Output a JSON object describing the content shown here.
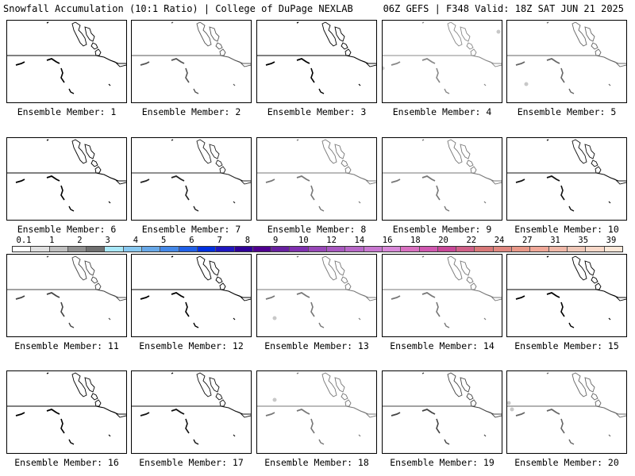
{
  "header": {
    "left_title": "Snowfall Accumulation (10:1 Ratio) | College of DuPage NEXLAB",
    "right_title": "06Z GEFS | F348 Valid: 18Z SAT JUN 21 2025"
  },
  "colorbar": {
    "labels": [
      "0.1",
      "1",
      "2",
      "3",
      "4",
      "5",
      "6",
      "7",
      "8",
      "9",
      "10",
      "12",
      "14",
      "16",
      "18",
      "20",
      "22",
      "24",
      "27",
      "31",
      "35",
      "39"
    ],
    "colors": [
      "#ffffff",
      "#e0e0e0",
      "#c0c0c0",
      "#909090",
      "#707070",
      "#a8e8f8",
      "#88c8f0",
      "#68a8e8",
      "#4488e8",
      "#2060e8",
      "#0030e0",
      "#2018c0",
      "#300098",
      "#500090",
      "#6820a0",
      "#8030b0",
      "#9848b8",
      "#a858c0",
      "#b868c8",
      "#c878d0",
      "#d888d8",
      "#d870c0",
      "#d058b0",
      "#c84898",
      "#d06088",
      "#d87878",
      "#e08880",
      "#e89888",
      "#f0a898",
      "#f0b8a8",
      "#f0c8b8",
      "#f8d8c8",
      "#fce8d8"
    ]
  },
  "panels": [
    {
      "label": "Ensemble Member: 1",
      "stroke": "#000000",
      "snow": false
    },
    {
      "label": "Ensemble Member: 2",
      "stroke": "#555555",
      "snow": false
    },
    {
      "label": "Ensemble Member: 3",
      "stroke": "#000000",
      "snow": false
    },
    {
      "label": "Ensemble Member: 4",
      "stroke": "#888888",
      "snow": true
    },
    {
      "label": "Ensemble Member: 5",
      "stroke": "#666666",
      "snow": true
    },
    {
      "label": "Ensemble Member: 6",
      "stroke": "#000000",
      "snow": false
    },
    {
      "label": "Ensemble Member: 7",
      "stroke": "#222222",
      "snow": false
    },
    {
      "label": "Ensemble Member: 8",
      "stroke": "#777777",
      "snow": false
    },
    {
      "label": "Ensemble Member: 9",
      "stroke": "#777777",
      "snow": false
    },
    {
      "label": "Ensemble Member: 10",
      "stroke": "#111111",
      "snow": false
    },
    {
      "label": "Ensemble Member: 11",
      "stroke": "#444444",
      "snow": false
    },
    {
      "label": "Ensemble Member: 12",
      "stroke": "#000000",
      "snow": false
    },
    {
      "label": "Ensemble Member: 13",
      "stroke": "#777777",
      "snow": true
    },
    {
      "label": "Ensemble Member: 14",
      "stroke": "#777777",
      "snow": false
    },
    {
      "label": "Ensemble Member: 15",
      "stroke": "#000000",
      "snow": false
    },
    {
      "label": "Ensemble Member: 16",
      "stroke": "#000000",
      "snow": false
    },
    {
      "label": "Ensemble Member: 17",
      "stroke": "#111111",
      "snow": false
    },
    {
      "label": "Ensemble Member: 18",
      "stroke": "#777777",
      "snow": true
    },
    {
      "label": "Ensemble Member: 19",
      "stroke": "#444444",
      "snow": false
    },
    {
      "label": "Ensemble Member: 20",
      "stroke": "#666666",
      "snow": true
    }
  ]
}
